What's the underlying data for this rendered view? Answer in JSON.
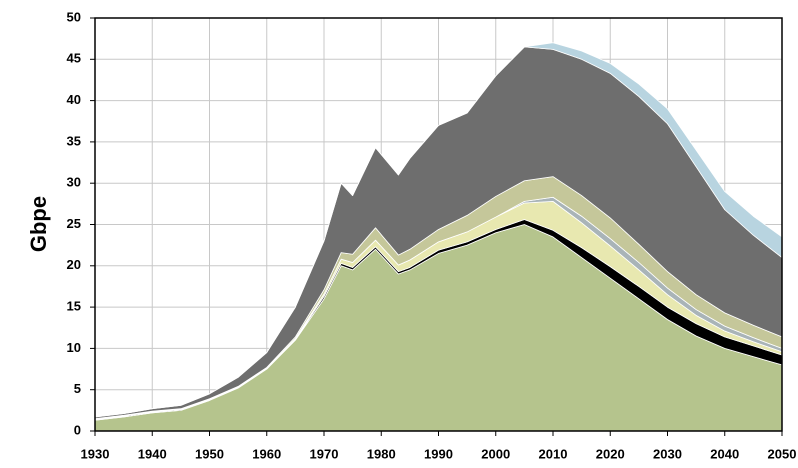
{
  "chart_data": {
    "type": "stacked_area",
    "y_label": "Gbpe",
    "x": [
      1930,
      1935,
      1940,
      1945,
      1950,
      1955,
      1960,
      1965,
      1970,
      1973,
      1975,
      1979,
      1983,
      1985,
      1990,
      1995,
      2000,
      2005,
      2010,
      2015,
      2020,
      2025,
      2030,
      2035,
      2040,
      2045,
      2050
    ],
    "series": [
      {
        "color": "#b5c48d",
        "values": [
          1.3,
          1.7,
          2.2,
          2.5,
          3.7,
          5.2,
          7.5,
          11,
          16,
          20,
          19.5,
          22,
          19,
          19.5,
          21.5,
          22.5,
          24,
          25,
          23.5,
          21,
          18.5,
          16,
          13.5,
          11.5,
          10,
          9,
          8
        ]
      },
      {
        "color": "#000000",
        "values": [
          0.1,
          0.1,
          0.1,
          0.1,
          0.1,
          0.1,
          0.1,
          0.1,
          0.3,
          0.3,
          0.3,
          0.3,
          0.3,
          0.3,
          0.4,
          0.4,
          0.4,
          0.6,
          0.8,
          1.2,
          1.4,
          1.5,
          1.5,
          1.5,
          1.4,
          1.3,
          1.2
        ]
      },
      {
        "color": "#e8e8b0",
        "values": [
          0,
          0,
          0,
          0,
          0,
          0,
          0,
          0.1,
          0.3,
          0.5,
          0.6,
          0.8,
          0.8,
          0.9,
          1,
          1.2,
          1.5,
          2,
          3.5,
          3,
          2.5,
          2,
          1.5,
          1,
          0.7,
          0.5,
          0.4
        ]
      },
      {
        "color": "#a9b4b8",
        "values": [
          0,
          0,
          0,
          0,
          0,
          0,
          0,
          0,
          0,
          0,
          0,
          0,
          0,
          0,
          0,
          0,
          0,
          0.2,
          0.5,
          0.8,
          0.9,
          0.9,
          0.8,
          0.7,
          0.6,
          0.5,
          0.4
        ]
      },
      {
        "color": "#c5c79a",
        "values": [
          0.1,
          0.1,
          0.1,
          0.1,
          0.1,
          0.1,
          0.1,
          0.2,
          0.5,
          0.8,
          1,
          1.5,
          1.2,
          1.3,
          1.5,
          2,
          2.5,
          2.5,
          2.5,
          2.5,
          2.5,
          2.2,
          2,
          1.8,
          1.6,
          1.5,
          1.4
        ]
      },
      {
        "color": "#6e6e6e",
        "values": [
          0.2,
          0.2,
          0.3,
          0.4,
          0.6,
          1.1,
          1.8,
          3.6,
          5.9,
          8.4,
          7.1,
          9.7,
          9.7,
          11,
          12.6,
          12.4,
          14.6,
          16.2,
          15.4,
          16.5,
          17.5,
          17.9,
          17.9,
          15.5,
          12.5,
          10.9,
          9.6
        ]
      },
      {
        "color": "#b8d4e0",
        "values": [
          0,
          0,
          0,
          0,
          0,
          0,
          0,
          0,
          0,
          0,
          0,
          0,
          0,
          0,
          0,
          0,
          0,
          0,
          0.8,
          1,
          1.2,
          1.5,
          1.8,
          2,
          2.2,
          2.3,
          2.5
        ]
      }
    ],
    "xlim": [
      1930,
      2050
    ],
    "xticks": [
      1930,
      1940,
      1950,
      1960,
      1970,
      1980,
      1990,
      2000,
      2010,
      2020,
      2030,
      2040,
      2050
    ],
    "ylim": [
      0,
      50
    ],
    "yticks": [
      0,
      5,
      10,
      15,
      20,
      25,
      30,
      35,
      40,
      45,
      50
    ],
    "grid": true
  }
}
